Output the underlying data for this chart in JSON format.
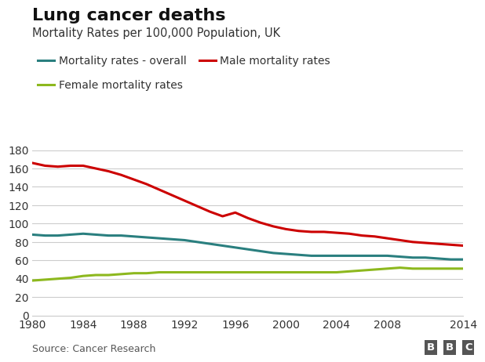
{
  "title": "Lung cancer deaths",
  "subtitle": "Mortality Rates per 100,000 Population, UK",
  "source": "Source: Cancer Research",
  "years": [
    1980,
    1981,
    1982,
    1983,
    1984,
    1985,
    1986,
    1987,
    1988,
    1989,
    1990,
    1991,
    1992,
    1993,
    1994,
    1995,
    1996,
    1997,
    1998,
    1999,
    2000,
    2001,
    2002,
    2003,
    2004,
    2005,
    2006,
    2007,
    2008,
    2009,
    2010,
    2011,
    2012,
    2013,
    2014
  ],
  "overall": [
    88,
    87,
    87,
    88,
    89,
    88,
    87,
    87,
    86,
    85,
    84,
    83,
    82,
    80,
    78,
    76,
    74,
    72,
    70,
    68,
    67,
    66,
    65,
    65,
    65,
    65,
    65,
    65,
    65,
    64,
    63,
    63,
    62,
    61,
    61
  ],
  "male": [
    166,
    163,
    162,
    163,
    163,
    160,
    157,
    153,
    148,
    143,
    137,
    131,
    125,
    119,
    113,
    108,
    112,
    106,
    101,
    97,
    94,
    92,
    91,
    91,
    90,
    89,
    87,
    86,
    84,
    82,
    80,
    79,
    78,
    77,
    76
  ],
  "female": [
    38,
    39,
    40,
    41,
    43,
    44,
    44,
    45,
    46,
    46,
    47,
    47,
    47,
    47,
    47,
    47,
    47,
    47,
    47,
    47,
    47,
    47,
    47,
    47,
    47,
    48,
    49,
    50,
    51,
    52,
    51,
    51,
    51,
    51,
    51
  ],
  "overall_color": "#2a7f7f",
  "male_color": "#cc0000",
  "female_color": "#8db81e",
  "background_color": "#ffffff",
  "grid_color": "#cccccc",
  "ylim": [
    0,
    180
  ],
  "yticks": [
    0,
    20,
    40,
    60,
    80,
    100,
    120,
    140,
    160,
    180
  ],
  "xticks": [
    1980,
    1984,
    1988,
    1992,
    1996,
    2000,
    2004,
    2008,
    2014
  ],
  "line_width": 2.2,
  "title_fontsize": 16,
  "subtitle_fontsize": 10.5,
  "tick_fontsize": 10,
  "legend_fontsize": 10,
  "source_fontsize": 9
}
